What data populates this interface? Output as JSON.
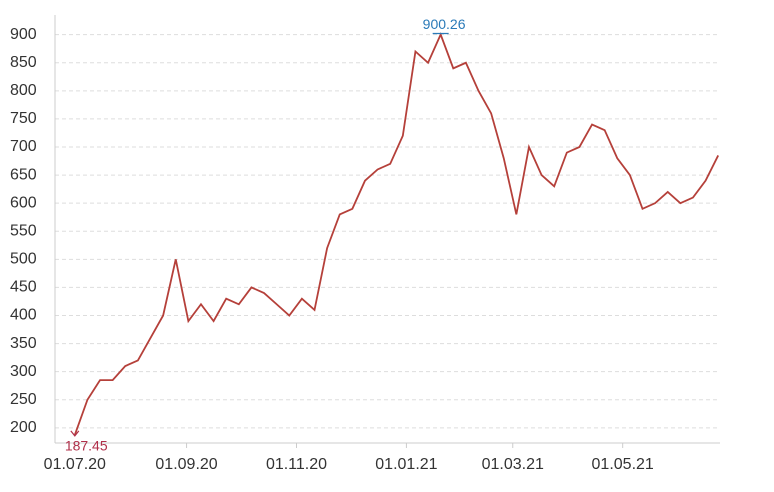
{
  "chart_data": {
    "type": "line",
    "x": [
      "01.07.20",
      "08.07.20",
      "15.07.20",
      "22.07.20",
      "29.07.20",
      "05.08.20",
      "12.08.20",
      "19.08.20",
      "26.08.20",
      "02.09.20",
      "09.09.20",
      "16.09.20",
      "23.09.20",
      "30.09.20",
      "07.10.20",
      "14.10.20",
      "21.10.20",
      "28.10.20",
      "04.11.20",
      "11.11.20",
      "18.11.20",
      "25.11.20",
      "02.12.20",
      "09.12.20",
      "16.12.20",
      "23.12.20",
      "30.12.20",
      "06.01.21",
      "13.01.21",
      "20.01.21",
      "27.01.21",
      "03.02.21",
      "10.02.21",
      "17.02.21",
      "24.02.21",
      "03.03.21",
      "10.03.21",
      "17.03.21",
      "24.03.21",
      "31.03.21",
      "07.04.21",
      "14.04.21",
      "21.04.21",
      "28.04.21",
      "05.05.21",
      "12.05.21",
      "19.05.21",
      "26.05.21",
      "02.06.21",
      "09.06.21",
      "16.06.21",
      "23.06.21"
    ],
    "series": [
      {
        "color": "#b5403a",
        "values": [
          187.45,
          250,
          285,
          285,
          310,
          320,
          360,
          400,
          500,
          390,
          420,
          390,
          430,
          420,
          450,
          440,
          420,
          400,
          430,
          410,
          520,
          580,
          590,
          640,
          660,
          670,
          720,
          870,
          850,
          900.26,
          840,
          850,
          800,
          760,
          680,
          580,
          700,
          650,
          630,
          690,
          700,
          740,
          730,
          680,
          650,
          590,
          600,
          620,
          600,
          610,
          640,
          685
        ]
      }
    ],
    "value_labels": [
      "187.45",
      null,
      null,
      null,
      null,
      null,
      null,
      null,
      null,
      null,
      null,
      null,
      null,
      null,
      null,
      null,
      null,
      null,
      null,
      null,
      null,
      null,
      null,
      null,
      null,
      null,
      null,
      null,
      null,
      "900.26",
      null,
      null,
      null,
      null,
      null,
      null,
      null,
      null,
      null,
      null,
      null,
      null,
      null,
      null,
      null,
      null,
      null,
      null,
      null,
      null,
      null,
      null
    ],
    "xlim": [
      "20.06.20",
      "24.06.21"
    ],
    "xticks": [
      "01.07.20",
      "01.09.20",
      "01.11.20",
      "01.01.21",
      "01.03.21",
      "01.05.21"
    ],
    "ylim": [
      173,
      935
    ],
    "yticks": [
      200,
      250,
      300,
      350,
      400,
      450,
      500,
      550,
      600,
      650,
      700,
      750,
      800,
      850,
      900
    ],
    "grid": true
  }
}
